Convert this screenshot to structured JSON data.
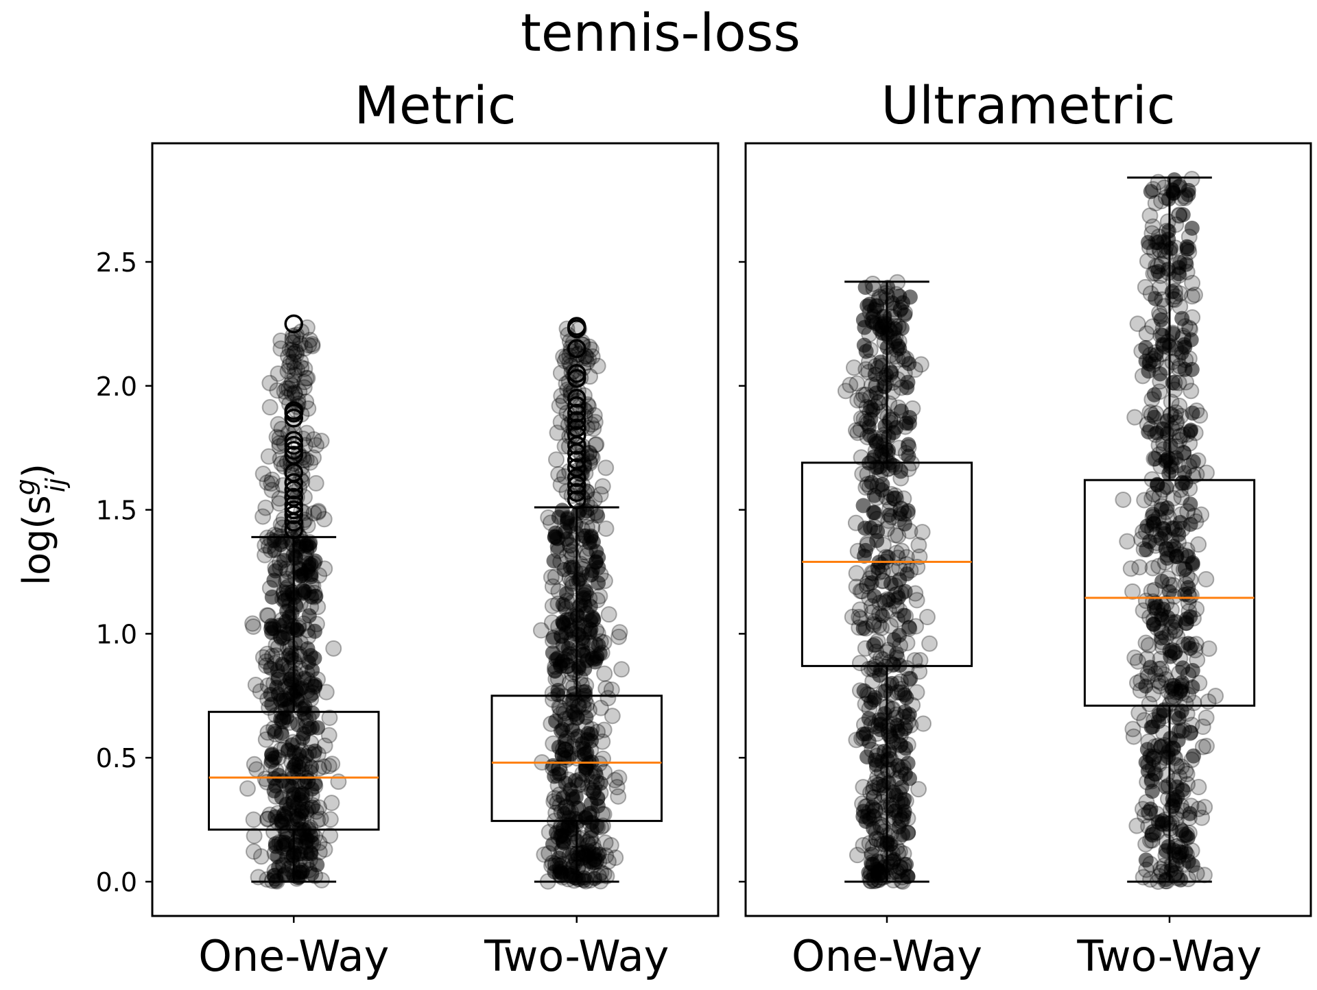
{
  "chart_data": {
    "type": "box",
    "title": "tennis-loss",
    "ylabel": "log(s",
    "ylabel_sup": "g",
    "ylabel_sub": "ij",
    "ylabel_close": ")",
    "ylim": [
      -0.15,
      2.95
    ],
    "yticks": [
      0.0,
      0.5,
      1.0,
      1.5,
      2.0,
      2.5
    ],
    "ytick_labels": [
      "0.0",
      "0.5",
      "1.0",
      "1.5",
      "2.0",
      "2.5"
    ],
    "categories": [
      "One-Way",
      "Two-Way"
    ],
    "colors": {
      "median": "#ff7f0e",
      "points": "#000000",
      "box": "#000000"
    },
    "panels": [
      {
        "title": "Metric",
        "boxes": [
          {
            "category": "One-Way",
            "whisker_low": 0.0,
            "q1": 0.21,
            "median": 0.42,
            "q3": 0.685,
            "whisker_high": 1.39,
            "outliers": [
              1.42,
              1.45,
              1.48,
              1.5,
              1.52,
              1.55,
              1.58,
              1.61,
              1.65,
              1.72,
              1.74,
              1.76,
              1.78,
              1.87,
              1.89,
              1.9,
              2.25
            ],
            "point_min": 0.0,
            "point_max": 2.25
          },
          {
            "category": "Two-Way",
            "whisker_low": 0.0,
            "q1": 0.245,
            "median": 0.48,
            "q3": 0.75,
            "whisker_high": 1.51,
            "outliers": [
              1.54,
              1.57,
              1.6,
              1.63,
              1.67,
              1.7,
              1.73,
              1.76,
              1.8,
              1.83,
              1.86,
              1.89,
              1.92,
              1.95,
              2.03,
              2.05,
              2.15,
              2.23,
              2.24
            ],
            "point_min": 0.0,
            "point_max": 2.24
          }
        ]
      },
      {
        "title": "Ultrametric",
        "boxes": [
          {
            "category": "One-Way",
            "whisker_low": 0.0,
            "q1": 0.87,
            "median": 1.29,
            "q3": 1.69,
            "whisker_high": 2.42,
            "outliers": [],
            "point_min": 0.0,
            "point_max": 2.42
          },
          {
            "category": "Two-Way",
            "whisker_low": 0.0,
            "q1": 0.71,
            "median": 1.145,
            "q3": 1.62,
            "whisker_high": 2.84,
            "outliers": [],
            "point_min": 0.0,
            "point_max": 2.84
          }
        ]
      }
    ]
  }
}
